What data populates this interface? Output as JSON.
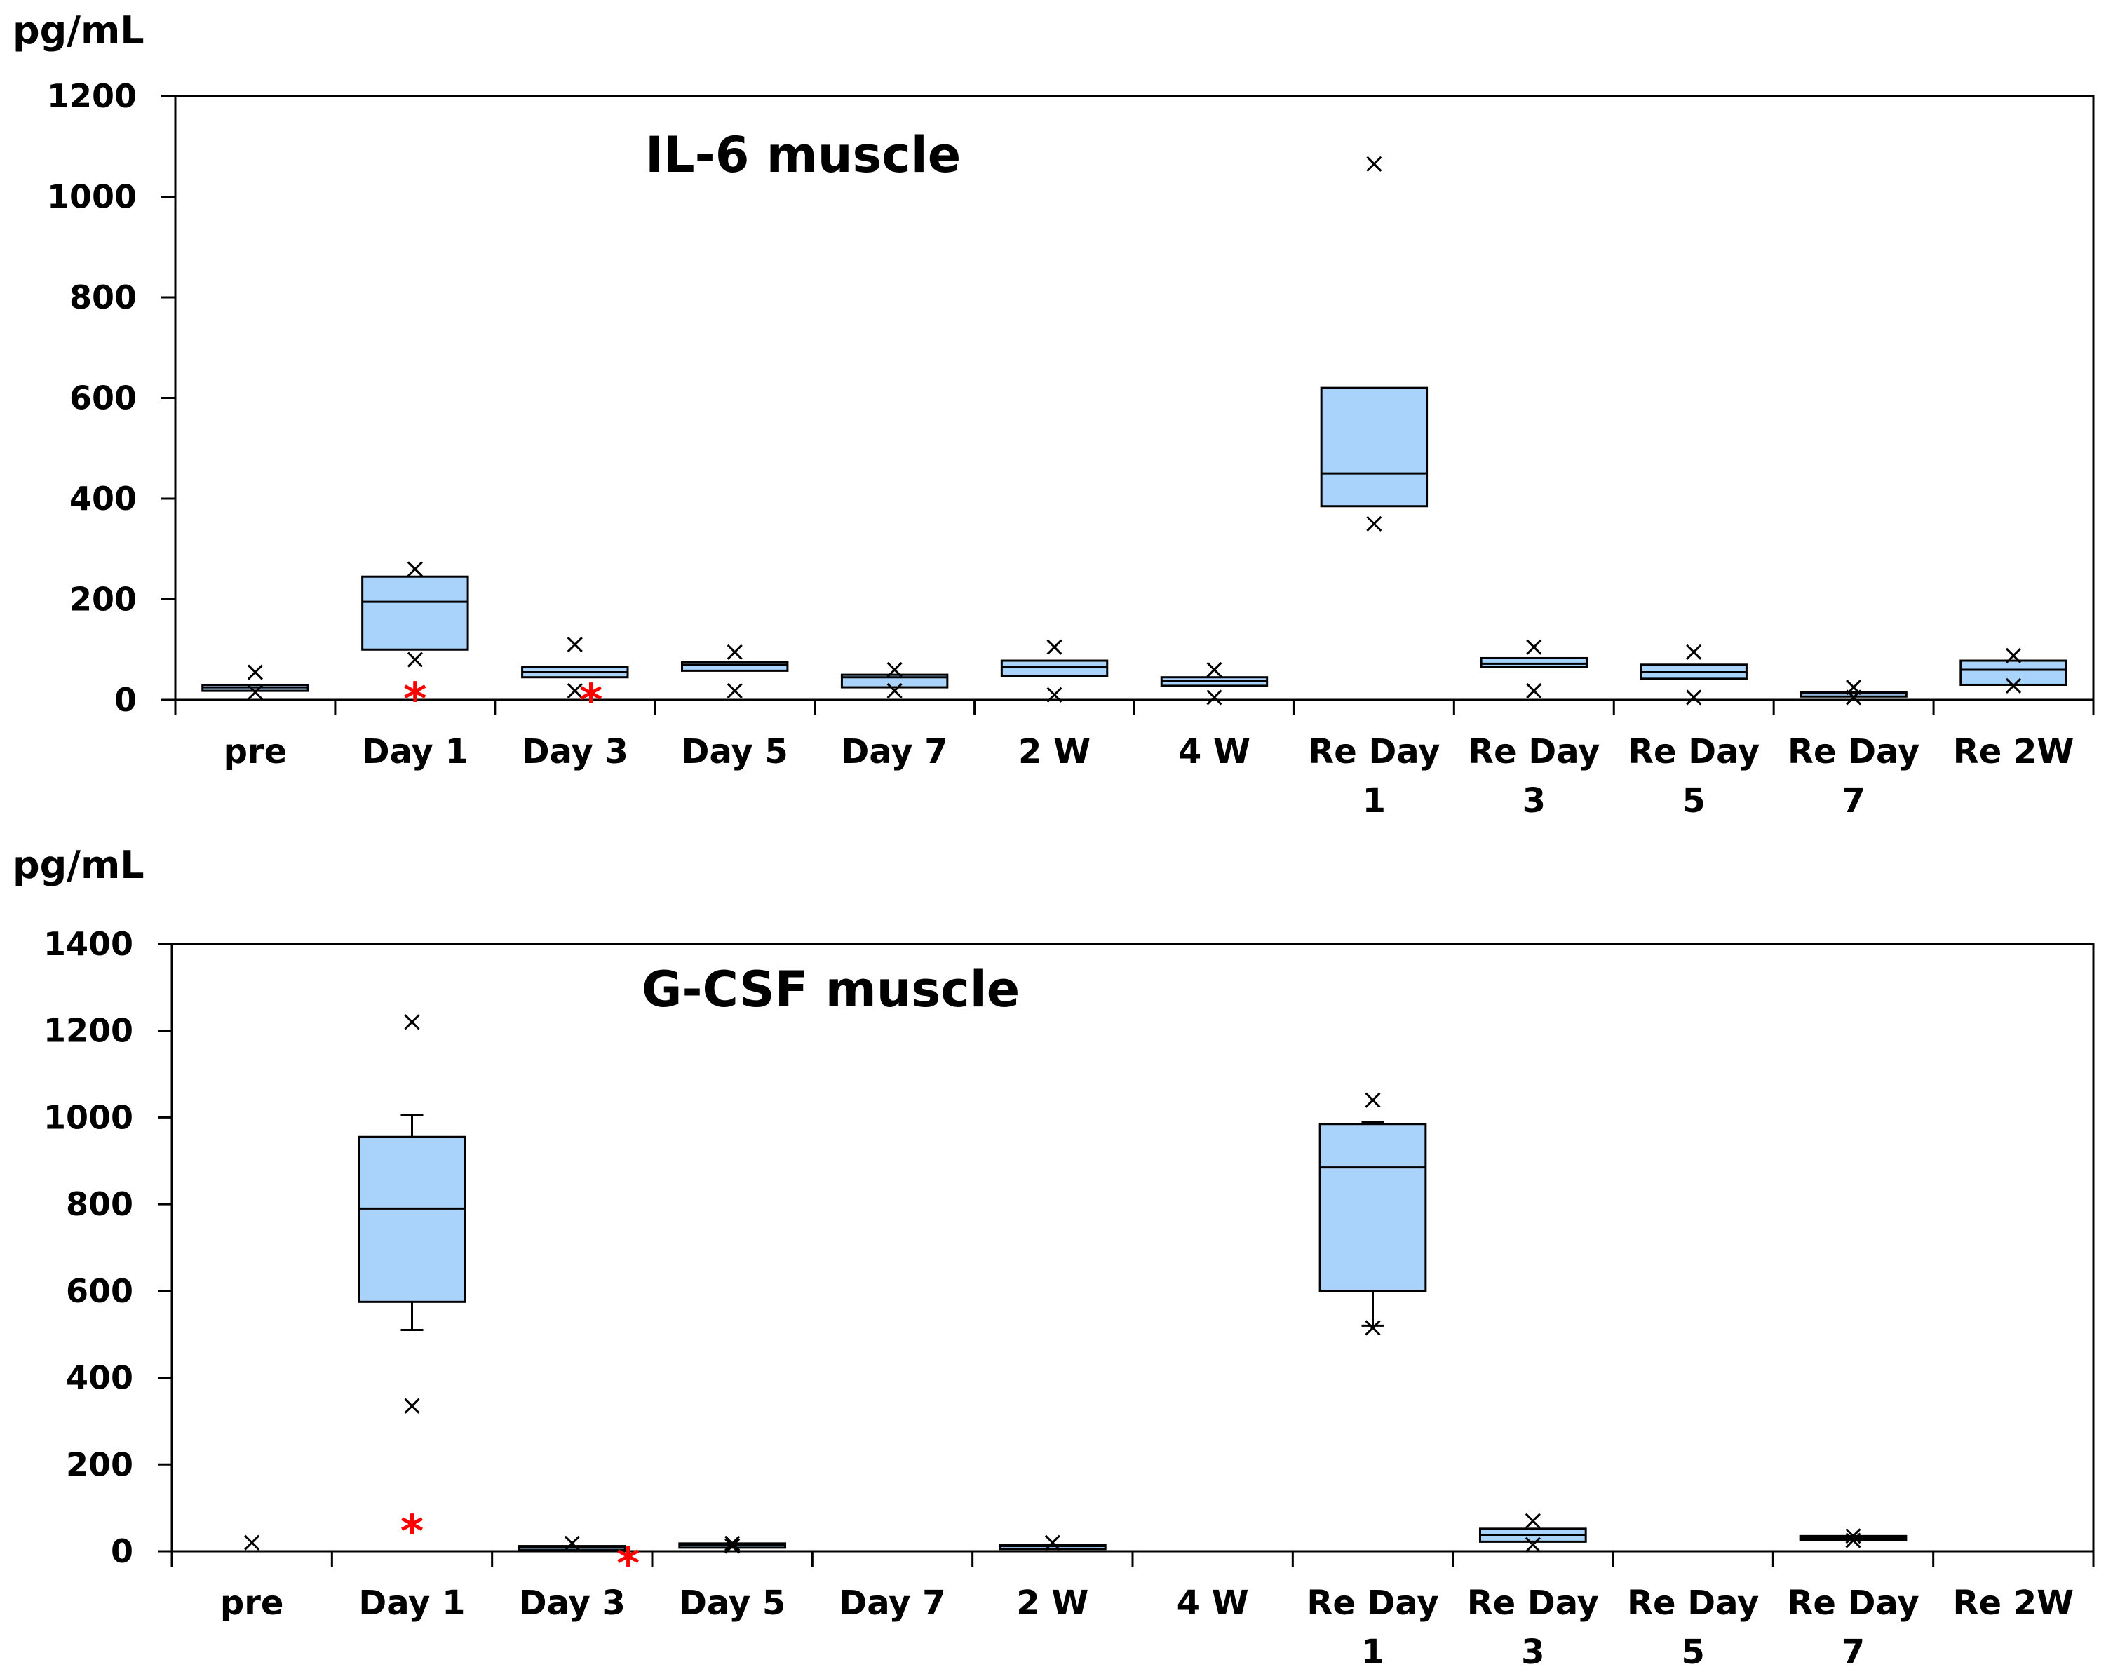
{
  "figure": {
    "colors": {
      "box_fill": "#a9d3fa",
      "box_stroke": "#000000",
      "marker": "#000000",
      "significance": "#ff0000",
      "axis": "#000000"
    }
  },
  "chart_data": [
    {
      "type": "boxplot",
      "title": "IL-6 muscle",
      "ylabel": "pg/mL",
      "xlabel": "",
      "ylim": [
        0,
        1200
      ],
      "yticks": [
        0,
        200,
        400,
        600,
        800,
        1000,
        1200
      ],
      "grid": false,
      "categories": [
        "pre",
        "Day 1",
        "Day 3",
        "Day 5",
        "Day 7",
        "2 W",
        "4 W",
        "Re Day 1",
        "Re Day 3",
        "Re Day 5",
        "Re Day 7",
        "Re 2W"
      ],
      "category_label_lines": [
        [
          "pre"
        ],
        [
          "Day 1"
        ],
        [
          "Day 3"
        ],
        [
          "Day 5"
        ],
        [
          "Day 7"
        ],
        [
          "2 W"
        ],
        [
          "4 W"
        ],
        [
          "Re Day",
          "1"
        ],
        [
          "Re    Day",
          "3"
        ],
        [
          "Re Day",
          "5"
        ],
        [
          "Re Day",
          "7"
        ],
        [
          "Re 2W"
        ]
      ],
      "boxes": [
        {
          "category": "pre",
          "q1": 18,
          "median": 25,
          "q3": 30,
          "min_marker": 15,
          "max_marker": 55
        },
        {
          "category": "Day 1",
          "q1": 100,
          "median": 195,
          "q3": 245,
          "min_marker": 80,
          "max_marker": 260
        },
        {
          "category": "Day 3",
          "q1": 45,
          "median": 55,
          "q3": 65,
          "min_marker": 18,
          "max_marker": 110
        },
        {
          "category": "Day 5",
          "q1": 58,
          "median": 70,
          "q3": 75,
          "min_marker": 18,
          "max_marker": 95
        },
        {
          "category": "Day 7",
          "q1": 25,
          "median": 45,
          "q3": 50,
          "min_marker": 18,
          "max_marker": 60
        },
        {
          "category": "2 W",
          "q1": 48,
          "median": 65,
          "q3": 78,
          "min_marker": 10,
          "max_marker": 105
        },
        {
          "category": "4 W",
          "q1": 28,
          "median": 38,
          "q3": 45,
          "min_marker": 5,
          "max_marker": 60
        },
        {
          "category": "Re Day 1",
          "q1": 385,
          "median": 450,
          "q3": 620,
          "min_marker": 350,
          "max_marker": 1065
        },
        {
          "category": "Re Day 3",
          "q1": 65,
          "median": 72,
          "q3": 83,
          "min_marker": 18,
          "max_marker": 105
        },
        {
          "category": "Re Day 5",
          "q1": 42,
          "median": 55,
          "q3": 70,
          "min_marker": 5,
          "max_marker": 95
        },
        {
          "category": "Re Day 7",
          "q1": 10,
          "median": 13,
          "q3": 15,
          "min_marker": 5,
          "max_marker": 25
        },
        {
          "category": "Re 2W",
          "q1": 30,
          "median": 60,
          "q3": 78,
          "min_marker": 28,
          "max_marker": 88
        }
      ],
      "significance_markers": [
        {
          "category_index": 1.0,
          "value": 18,
          "label": "*"
        },
        {
          "category_index": 2.1,
          "value": 15,
          "label": "*"
        }
      ]
    },
    {
      "type": "boxplot",
      "title": "G-CSF muscle",
      "ylabel": "pg/mL",
      "xlabel": "",
      "ylim": [
        0,
        1400
      ],
      "yticks": [
        0,
        200,
        400,
        600,
        800,
        1000,
        1200,
        1400
      ],
      "grid": false,
      "categories": [
        "pre",
        "Day 1",
        "Day 3",
        "Day 5",
        "Day 7",
        "2 W",
        "4 W",
        "Re Day 1",
        "Re Day 3",
        "Re Day 5",
        "Re Day 7",
        "Re 2W"
      ],
      "category_label_lines": [
        [
          "pre"
        ],
        [
          "Day 1"
        ],
        [
          "Day 3"
        ],
        [
          "Day 5"
        ],
        [
          "Day 7"
        ],
        [
          "2 W"
        ],
        [
          "4 W"
        ],
        [
          "Re Day",
          "1"
        ],
        [
          "Re    Day",
          "3"
        ],
        [
          "Re Day",
          "5"
        ],
        [
          "Re Day",
          "7"
        ],
        [
          "Re 2W"
        ]
      ],
      "boxes": [
        {
          "category": "pre",
          "max_marker": 20
        },
        {
          "category": "Day 1",
          "whisker_low": 510,
          "q1": 575,
          "median": 790,
          "q3": 955,
          "whisker_high": 1005,
          "min_marker": 335,
          "max_marker": 1220
        },
        {
          "category": "Day 3",
          "q1": 5,
          "median": 8,
          "q3": 12,
          "max_marker": 18
        },
        {
          "category": "Day 5",
          "q1": 12,
          "median": 15,
          "q3": 18,
          "min_marker": 12,
          "max_marker": 18
        },
        {
          "category": "Day 7"
        },
        {
          "category": "2 W",
          "q1": 8,
          "median": 12,
          "q3": 15,
          "max_marker": 20
        },
        {
          "category": "4 W"
        },
        {
          "category": "Re Day 1",
          "whisker_low": 520,
          "q1": 600,
          "median": 885,
          "q3": 985,
          "whisker_high": 990,
          "min_marker": 515,
          "max_marker": 1040
        },
        {
          "category": "Re Day 3",
          "q1": 22,
          "median": 38,
          "q3": 52,
          "min_marker": 15,
          "max_marker": 70
        },
        {
          "category": "Re Day 5"
        },
        {
          "category": "Re Day 7",
          "q1": 28,
          "median": 30,
          "q3": 35,
          "min_marker": 25,
          "max_marker": 35
        },
        {
          "category": "Re 2W"
        }
      ],
      "significance_markers": [
        {
          "category_index": 1.0,
          "value": 65,
          "label": "*"
        },
        {
          "category_index": 2.35,
          "value": -10,
          "label": "*"
        }
      ]
    }
  ]
}
